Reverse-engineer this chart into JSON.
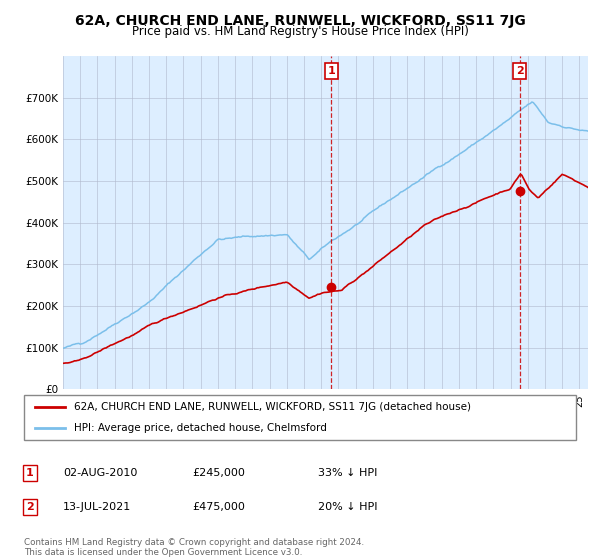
{
  "title": "62A, CHURCH END LANE, RUNWELL, WICKFORD, SS11 7JG",
  "subtitle": "Price paid vs. HM Land Registry's House Price Index (HPI)",
  "legend_line1": "62A, CHURCH END LANE, RUNWELL, WICKFORD, SS11 7JG (detached house)",
  "legend_line2": "HPI: Average price, detached house, Chelmsford",
  "annotation1_date": "02-AUG-2010",
  "annotation1_price": "£245,000",
  "annotation1_hpi": "33% ↓ HPI",
  "annotation2_date": "13-JUL-2021",
  "annotation2_price": "£475,000",
  "annotation2_hpi": "20% ↓ HPI",
  "footer": "Contains HM Land Registry data © Crown copyright and database right 2024.\nThis data is licensed under the Open Government Licence v3.0.",
  "hpi_color": "#7bbfea",
  "price_color": "#cc0000",
  "background_plot": "#ddeeff",
  "grid_color": "#b0b8cc",
  "ylim": [
    0,
    800000
  ],
  "yticks": [
    0,
    100000,
    200000,
    300000,
    400000,
    500000,
    600000,
    700000
  ],
  "sale1_x": 2010.58,
  "sale1_y": 245000,
  "sale2_x": 2021.53,
  "sale2_y": 475000,
  "xmin": 1995.0,
  "xmax": 2025.5
}
